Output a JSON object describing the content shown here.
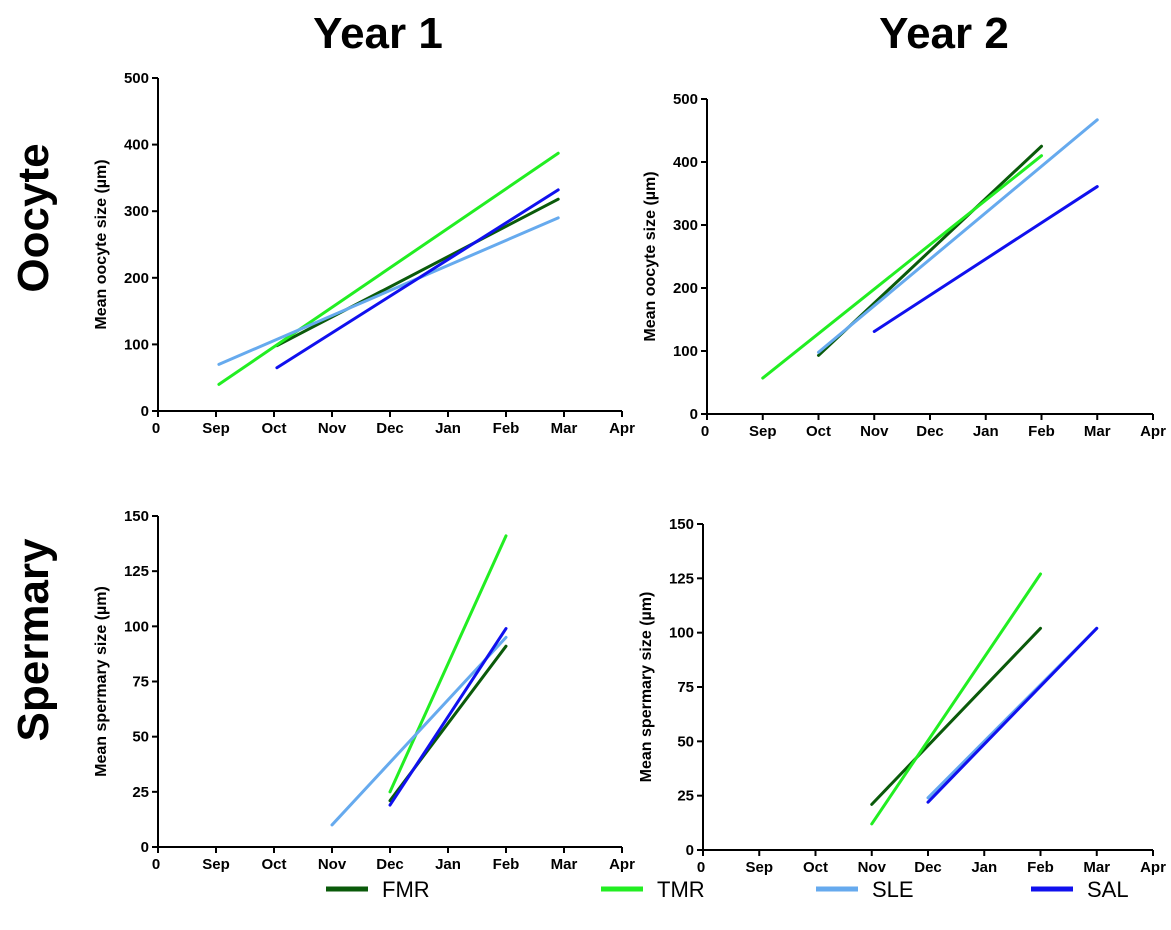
{
  "column_titles": [
    "Year 1",
    "Year 2"
  ],
  "row_titles": [
    "Oocyte",
    "Spermary"
  ],
  "colors": {
    "FMR": "#0a5a0a",
    "TMR": "#22ee22",
    "SLE": "#66aaee",
    "SAL": "#1010ee"
  },
  "legend": [
    {
      "name": "FMR",
      "color": "#0a5a0a"
    },
    {
      "name": "TMR",
      "color": "#22ee22"
    },
    {
      "name": "SLE",
      "color": "#66aaee"
    },
    {
      "name": "SAL",
      "color": "#1010ee"
    }
  ],
  "chart_data": [
    {
      "type": "line",
      "title": "",
      "column": "Year 1",
      "row": "Oocyte",
      "xlabel": "",
      "ylabel": "Mean oocyte size (µm)",
      "x_tick_labels": [
        "0",
        "Sep",
        "Oct",
        "Nov",
        "Dec",
        "Jan",
        "Feb",
        "Mar",
        "Apr"
      ],
      "xlim": [
        0,
        8
      ],
      "ylim": [
        0,
        500
      ],
      "y_ticks": [
        0,
        100,
        200,
        300,
        400,
        500
      ],
      "grid": false,
      "series": [
        {
          "name": "FMR",
          "x": [
            2.05,
            6.9
          ],
          "y": [
            98,
            318
          ]
        },
        {
          "name": "TMR",
          "x": [
            1.05,
            6.9
          ],
          "y": [
            40,
            387
          ]
        },
        {
          "name": "SLE",
          "x": [
            1.05,
            6.9
          ],
          "y": [
            70,
            290
          ]
        },
        {
          "name": "SAL",
          "x": [
            2.05,
            6.9
          ],
          "y": [
            65,
            332
          ]
        }
      ]
    },
    {
      "type": "line",
      "title": "",
      "column": "Year 2",
      "row": "Oocyte",
      "xlabel": "",
      "ylabel": "Mean oocyte size (µm)",
      "x_tick_labels": [
        "0",
        "Sep",
        "Oct",
        "Nov",
        "Dec",
        "Jan",
        "Feb",
        "Mar",
        "Apr"
      ],
      "xlim": [
        0,
        8
      ],
      "ylim": [
        0,
        500
      ],
      "y_ticks": [
        0,
        100,
        200,
        300,
        400,
        500
      ],
      "grid": false,
      "series": [
        {
          "name": "FMR",
          "x": [
            2.0,
            6.0
          ],
          "y": [
            93,
            425
          ]
        },
        {
          "name": "TMR",
          "x": [
            1.0,
            6.0
          ],
          "y": [
            57,
            410
          ]
        },
        {
          "name": "SLE",
          "x": [
            2.0,
            7.0
          ],
          "y": [
            98,
            467
          ]
        },
        {
          "name": "SAL",
          "x": [
            3.0,
            7.0
          ],
          "y": [
            131,
            361
          ]
        }
      ]
    },
    {
      "type": "line",
      "title": "",
      "column": "Year 1",
      "row": "Spermary",
      "xlabel": "",
      "ylabel": "Mean spermary size (µm)",
      "x_tick_labels": [
        "0",
        "Sep",
        "Oct",
        "Nov",
        "Dec",
        "Jan",
        "Feb",
        "Mar",
        "Apr"
      ],
      "xlim": [
        0,
        8
      ],
      "ylim": [
        0,
        150
      ],
      "y_ticks": [
        0,
        25,
        50,
        75,
        100,
        125,
        150
      ],
      "grid": false,
      "series": [
        {
          "name": "FMR",
          "x": [
            4.0,
            6.0
          ],
          "y": [
            21,
            91
          ]
        },
        {
          "name": "TMR",
          "x": [
            4.0,
            6.0
          ],
          "y": [
            25,
            141
          ]
        },
        {
          "name": "SLE",
          "x": [
            3.0,
            6.0
          ],
          "y": [
            10,
            95
          ]
        },
        {
          "name": "SAL",
          "x": [
            4.0,
            6.0
          ],
          "y": [
            19,
            99
          ]
        }
      ]
    },
    {
      "type": "line",
      "title": "",
      "column": "Year 2",
      "row": "Spermary",
      "xlabel": "",
      "ylabel": "Mean spermary size (µm)",
      "x_tick_labels": [
        "0",
        "Sep",
        "Oct",
        "Nov",
        "Dec",
        "Jan",
        "Feb",
        "Mar",
        "Apr"
      ],
      "xlim": [
        0,
        8
      ],
      "ylim": [
        0,
        150
      ],
      "y_ticks": [
        0,
        25,
        50,
        75,
        100,
        125,
        150
      ],
      "grid": false,
      "series": [
        {
          "name": "FMR",
          "x": [
            3.0,
            6.0
          ],
          "y": [
            21,
            102
          ]
        },
        {
          "name": "TMR",
          "x": [
            3.0,
            6.0
          ],
          "y": [
            12,
            127
          ]
        },
        {
          "name": "SLE",
          "x": [
            4.0,
            7.0
          ],
          "y": [
            24,
            102
          ]
        },
        {
          "name": "SAL",
          "x": [
            4.0,
            7.0
          ],
          "y": [
            22,
            102
          ]
        }
      ]
    }
  ]
}
